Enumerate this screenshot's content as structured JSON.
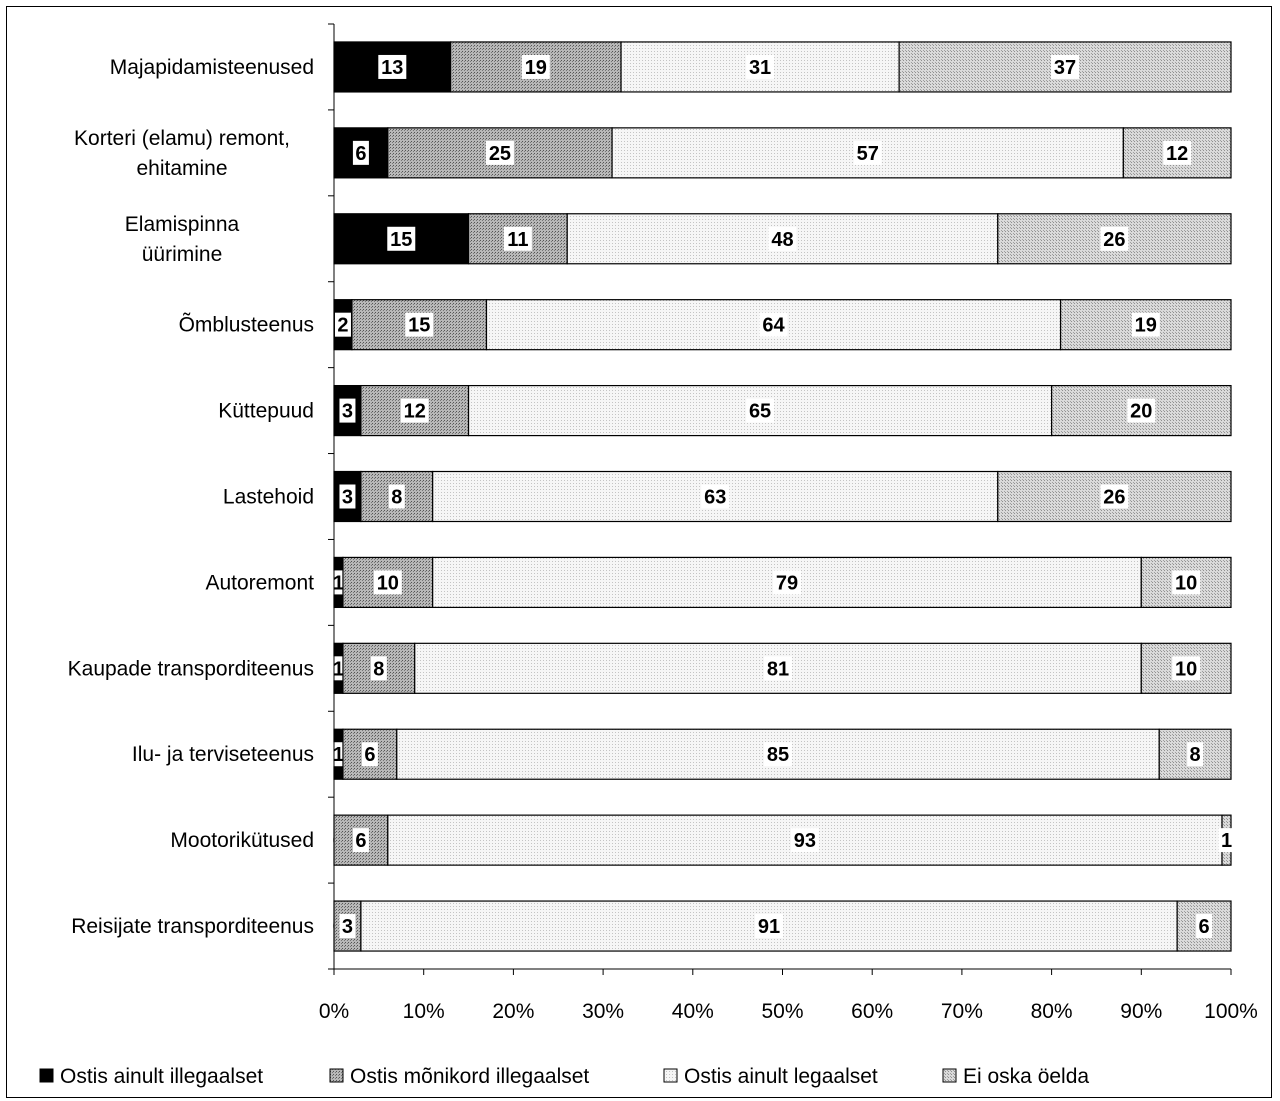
{
  "chart_data": {
    "type": "bar",
    "orientation": "horizontal",
    "stacked": "percent",
    "categories": [
      "Majapidamisteenused",
      "Korteri (elamu) remont, ehitamine",
      "Elamispinna üürimine",
      "Õmblusteenus",
      "Küttepuud",
      "Lastehoid",
      "Autoremont",
      "Kaupade transporditeenus",
      "Ilu- ja terviseteenus",
      "Mootorikütused",
      "Reisijate transporditeenus"
    ],
    "category_lines": [
      [
        "Majapidamisteenused"
      ],
      [
        "Korteri (elamu) remont,",
        "ehitamine"
      ],
      [
        "Elamispinna",
        "üürimine"
      ],
      [
        "Õmblusteenus"
      ],
      [
        "Küttepuud"
      ],
      [
        "Lastehoid"
      ],
      [
        "Autoremont"
      ],
      [
        "Kaupade transporditeenus"
      ],
      [
        "Ilu- ja terviseteenus"
      ],
      [
        "Mootorikütused"
      ],
      [
        "Reisijate transporditeenus"
      ]
    ],
    "series": [
      {
        "name": "Ostis ainult illegaalset",
        "color": "#000000",
        "values": [
          13,
          6,
          15,
          2,
          3,
          3,
          1,
          1,
          1,
          0,
          0
        ]
      },
      {
        "name": "Ostis mõnikord illegaalset",
        "color": "#a6a6a6",
        "values": [
          19,
          25,
          11,
          15,
          12,
          8,
          10,
          8,
          6,
          6,
          3
        ]
      },
      {
        "name": "Ostis ainult legaalset",
        "color": "#f2f2f2",
        "values": [
          31,
          57,
          48,
          64,
          65,
          63,
          79,
          81,
          85,
          93,
          91
        ]
      },
      {
        "name": "Ei oska öelda",
        "color": "#d0d0d0",
        "values": [
          37,
          12,
          26,
          19,
          20,
          26,
          10,
          10,
          8,
          1,
          6
        ]
      }
    ],
    "x_ticks": [
      "0%",
      "10%",
      "20%",
      "30%",
      "40%",
      "50%",
      "60%",
      "70%",
      "80%",
      "90%",
      "100%"
    ],
    "xlim": [
      0,
      100
    ],
    "grid": false,
    "legend_position": "bottom"
  }
}
